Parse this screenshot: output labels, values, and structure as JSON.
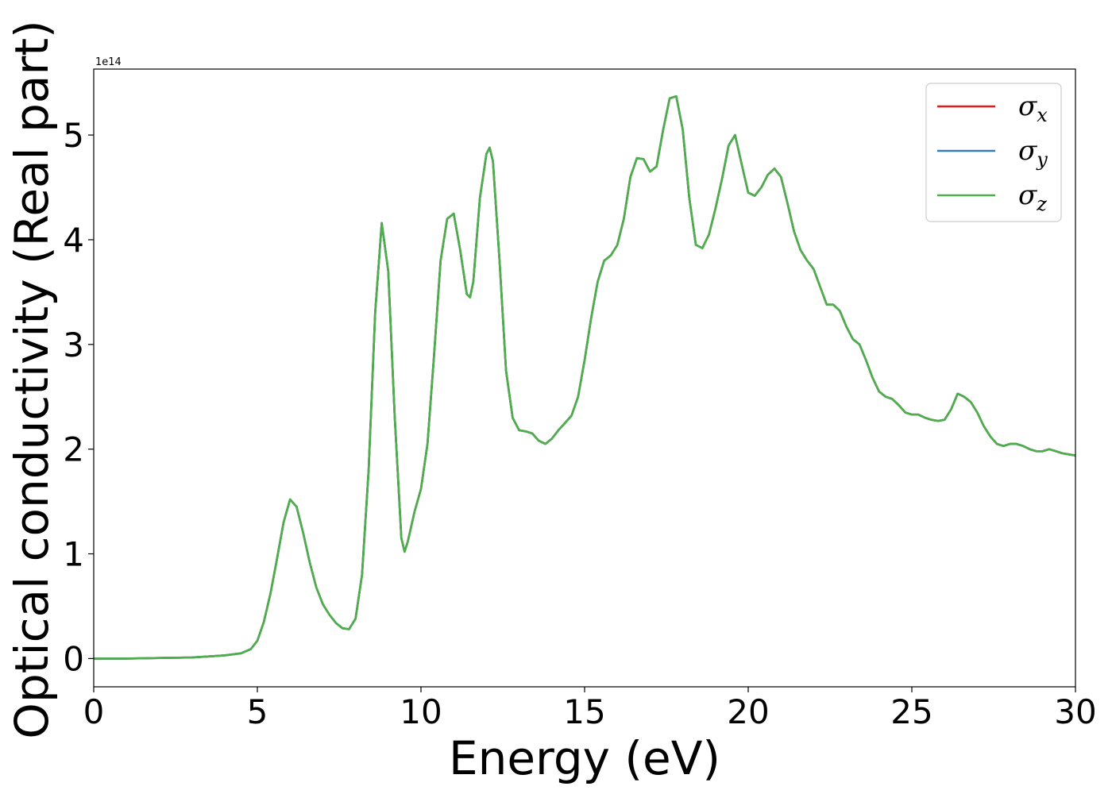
{
  "chart_data": {
    "type": "line",
    "xlabel": "Energy (eV)",
    "ylabel": "Optical conductivity (Real part)",
    "y_offset_text": "1e14",
    "y_scale_factor": 100000000000000.0,
    "xlim": [
      0,
      30
    ],
    "ylim": [
      -0.27,
      5.63
    ],
    "xticks": [
      0,
      5,
      10,
      15,
      20,
      25,
      30
    ],
    "xtick_labels": [
      "0",
      "5",
      "10",
      "15",
      "20",
      "25",
      "30"
    ],
    "yticks": [
      0,
      1,
      2,
      3,
      4,
      5
    ],
    "ytick_labels": [
      "0",
      "1",
      "2",
      "3",
      "4",
      "5"
    ],
    "grid": false,
    "legend_position": "top-right",
    "x": [
      0,
      1,
      2,
      3,
      4,
      4.5,
      4.8,
      5.0,
      5.2,
      5.4,
      5.6,
      5.8,
      6.0,
      6.2,
      6.4,
      6.6,
      6.8,
      7.0,
      7.2,
      7.4,
      7.6,
      7.8,
      8.0,
      8.2,
      8.4,
      8.6,
      8.8,
      9.0,
      9.2,
      9.4,
      9.5,
      9.6,
      9.8,
      10.0,
      10.2,
      10.4,
      10.6,
      10.8,
      11.0,
      11.2,
      11.4,
      11.5,
      11.6,
      11.8,
      12.0,
      12.1,
      12.2,
      12.4,
      12.6,
      12.8,
      13.0,
      13.2,
      13.4,
      13.6,
      13.8,
      14.0,
      14.2,
      14.4,
      14.6,
      14.8,
      15.0,
      15.2,
      15.4,
      15.6,
      15.8,
      16.0,
      16.2,
      16.4,
      16.6,
      16.8,
      17.0,
      17.2,
      17.4,
      17.6,
      17.8,
      18.0,
      18.2,
      18.4,
      18.6,
      18.8,
      19.0,
      19.2,
      19.4,
      19.6,
      19.8,
      20.0,
      20.2,
      20.4,
      20.6,
      20.8,
      21.0,
      21.2,
      21.4,
      21.6,
      21.8,
      22.0,
      22.2,
      22.4,
      22.6,
      22.8,
      23.0,
      23.2,
      23.4,
      23.6,
      23.8,
      24.0,
      24.2,
      24.4,
      24.6,
      24.8,
      25.0,
      25.2,
      25.4,
      25.6,
      25.8,
      26.0,
      26.2,
      26.4,
      26.6,
      26.8,
      27.0,
      27.2,
      27.4,
      27.6,
      27.8,
      28.0,
      28.2,
      28.4,
      28.6,
      28.8,
      29.0,
      29.2,
      29.4,
      29.6,
      29.8,
      30.0
    ],
    "series": [
      {
        "name": "σx",
        "color": "#e41a1c",
        "values": [
          0,
          0,
          0.005,
          0.01,
          0.03,
          0.05,
          0.09,
          0.17,
          0.35,
          0.62,
          0.95,
          1.3,
          1.52,
          1.45,
          1.2,
          0.92,
          0.68,
          0.52,
          0.42,
          0.34,
          0.29,
          0.28,
          0.38,
          0.8,
          1.8,
          3.3,
          4.16,
          3.7,
          2.3,
          1.15,
          1.02,
          1.12,
          1.4,
          1.62,
          2.05,
          2.9,
          3.8,
          4.2,
          4.25,
          3.9,
          3.48,
          3.45,
          3.6,
          4.4,
          4.82,
          4.88,
          4.75,
          3.8,
          2.75,
          2.3,
          2.18,
          2.17,
          2.15,
          2.08,
          2.05,
          2.1,
          2.18,
          2.25,
          2.32,
          2.5,
          2.85,
          3.25,
          3.6,
          3.8,
          3.85,
          3.95,
          4.2,
          4.6,
          4.78,
          4.77,
          4.65,
          4.7,
          5.05,
          5.35,
          5.37,
          5.05,
          4.4,
          3.95,
          3.92,
          4.05,
          4.3,
          4.58,
          4.9,
          5.0,
          4.72,
          4.45,
          4.42,
          4.5,
          4.62,
          4.68,
          4.6,
          4.35,
          4.08,
          3.9,
          3.8,
          3.72,
          3.55,
          3.38,
          3.38,
          3.32,
          3.17,
          3.05,
          3.0,
          2.85,
          2.68,
          2.55,
          2.5,
          2.48,
          2.42,
          2.35,
          2.33,
          2.33,
          2.3,
          2.28,
          2.27,
          2.28,
          2.38,
          2.53,
          2.5,
          2.45,
          2.35,
          2.22,
          2.12,
          2.05,
          2.03,
          2.05,
          2.05,
          2.03,
          2.0,
          1.98,
          1.98,
          2.0,
          1.98,
          1.96,
          1.95,
          1.94
        ]
      },
      {
        "name": "σy",
        "color": "#377eb8",
        "values": [
          0,
          0,
          0.005,
          0.01,
          0.03,
          0.05,
          0.09,
          0.17,
          0.35,
          0.62,
          0.95,
          1.3,
          1.52,
          1.45,
          1.2,
          0.92,
          0.68,
          0.52,
          0.42,
          0.34,
          0.29,
          0.28,
          0.38,
          0.8,
          1.8,
          3.3,
          4.16,
          3.7,
          2.3,
          1.15,
          1.02,
          1.12,
          1.4,
          1.62,
          2.05,
          2.9,
          3.8,
          4.2,
          4.25,
          3.9,
          3.48,
          3.45,
          3.6,
          4.4,
          4.82,
          4.88,
          4.75,
          3.8,
          2.75,
          2.3,
          2.18,
          2.17,
          2.15,
          2.08,
          2.05,
          2.1,
          2.18,
          2.25,
          2.32,
          2.5,
          2.85,
          3.25,
          3.6,
          3.8,
          3.85,
          3.95,
          4.2,
          4.6,
          4.78,
          4.77,
          4.65,
          4.7,
          5.05,
          5.35,
          5.37,
          5.05,
          4.4,
          3.95,
          3.92,
          4.05,
          4.3,
          4.58,
          4.9,
          5.0,
          4.72,
          4.45,
          4.42,
          4.5,
          4.62,
          4.68,
          4.6,
          4.35,
          4.08,
          3.9,
          3.8,
          3.72,
          3.55,
          3.38,
          3.38,
          3.32,
          3.17,
          3.05,
          3.0,
          2.85,
          2.68,
          2.55,
          2.5,
          2.48,
          2.42,
          2.35,
          2.33,
          2.33,
          2.3,
          2.28,
          2.27,
          2.28,
          2.38,
          2.53,
          2.5,
          2.45,
          2.35,
          2.22,
          2.12,
          2.05,
          2.03,
          2.05,
          2.05,
          2.03,
          2.0,
          1.98,
          1.98,
          2.0,
          1.98,
          1.96,
          1.95,
          1.94
        ]
      },
      {
        "name": "σz",
        "color": "#4daf4a",
        "values": [
          0,
          0,
          0.005,
          0.01,
          0.03,
          0.05,
          0.09,
          0.17,
          0.35,
          0.62,
          0.95,
          1.3,
          1.52,
          1.45,
          1.2,
          0.92,
          0.68,
          0.52,
          0.42,
          0.34,
          0.29,
          0.28,
          0.38,
          0.8,
          1.8,
          3.3,
          4.16,
          3.7,
          2.3,
          1.15,
          1.02,
          1.12,
          1.4,
          1.62,
          2.05,
          2.9,
          3.8,
          4.2,
          4.25,
          3.9,
          3.48,
          3.45,
          3.6,
          4.4,
          4.82,
          4.88,
          4.75,
          3.8,
          2.75,
          2.3,
          2.18,
          2.17,
          2.15,
          2.08,
          2.05,
          2.1,
          2.18,
          2.25,
          2.32,
          2.5,
          2.85,
          3.25,
          3.6,
          3.8,
          3.85,
          3.95,
          4.2,
          4.6,
          4.78,
          4.77,
          4.65,
          4.7,
          5.05,
          5.35,
          5.37,
          5.05,
          4.4,
          3.95,
          3.92,
          4.05,
          4.3,
          4.58,
          4.9,
          5.0,
          4.72,
          4.45,
          4.42,
          4.5,
          4.62,
          4.68,
          4.6,
          4.35,
          4.08,
          3.9,
          3.8,
          3.72,
          3.55,
          3.38,
          3.38,
          3.32,
          3.17,
          3.05,
          3.0,
          2.85,
          2.68,
          2.55,
          2.5,
          2.48,
          2.42,
          2.35,
          2.33,
          2.33,
          2.3,
          2.28,
          2.27,
          2.28,
          2.38,
          2.53,
          2.5,
          2.45,
          2.35,
          2.22,
          2.12,
          2.05,
          2.03,
          2.05,
          2.05,
          2.03,
          2.0,
          1.98,
          1.98,
          2.0,
          1.98,
          1.96,
          1.95,
          1.94
        ]
      }
    ],
    "legend": [
      {
        "symbol": "σ",
        "sub": "x"
      },
      {
        "symbol": "σ",
        "sub": "y"
      },
      {
        "symbol": "σ",
        "sub": "z"
      }
    ]
  }
}
